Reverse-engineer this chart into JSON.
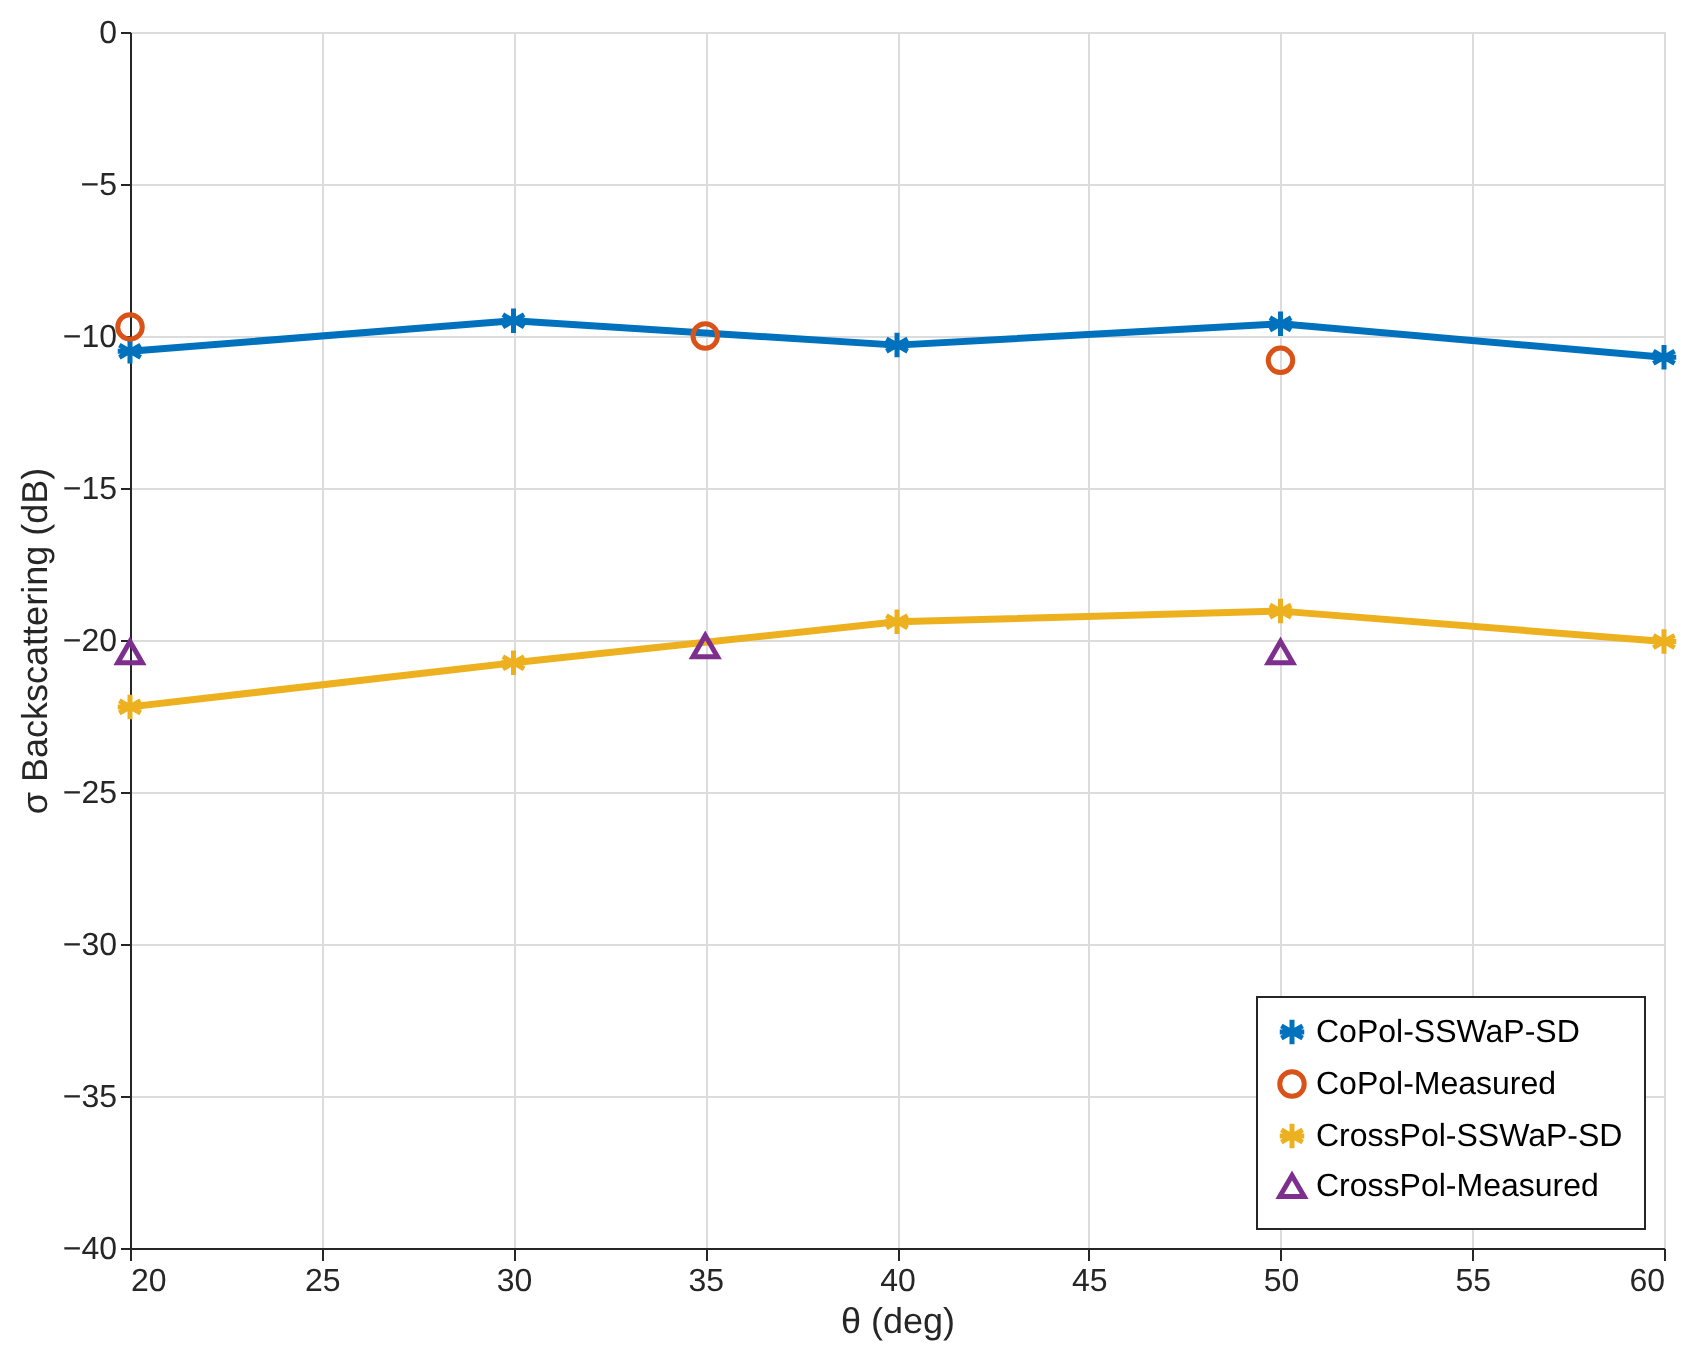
{
  "chart_data": {
    "type": "line",
    "xlabel": "θ (deg)",
    "ylabel": "σ Backscattering (dB)",
    "xlim": [
      20,
      60
    ],
    "xticks": [
      20,
      25,
      30,
      35,
      40,
      45,
      50,
      55,
      60
    ],
    "ylim": [
      -40,
      0
    ],
    "yticks": [
      -40,
      -35,
      -30,
      -25,
      -20,
      -15,
      -10,
      -5,
      0
    ],
    "grid": true,
    "legend": "bottom right",
    "series": [
      {
        "name": "CoPol-SSWaP-SD",
        "type": "line",
        "marker": "cross",
        "color": "#0072bd",
        "x": [
          20,
          30,
          40,
          50,
          60
        ],
        "values": [
          -10.5,
          -9.5,
          -10.3,
          -9.6,
          -10.7
        ]
      },
      {
        "name": "CoPol-Measured",
        "type": "scatter",
        "marker": "circle",
        "color": "#d95319",
        "x": [
          20,
          35,
          50
        ],
        "values": [
          -9.7,
          -10.0,
          -10.8
        ]
      },
      {
        "name": "CrossPol-SSWaP-SD",
        "type": "line",
        "marker": "cross",
        "color": "#edb120",
        "x": [
          20,
          30,
          40,
          50,
          60
        ],
        "values": [
          -22.2,
          -20.75,
          -19.4,
          -19.05,
          -20.05
        ]
      },
      {
        "name": "CrossPol-Measured",
        "type": "scatter",
        "marker": "triangle",
        "color": "#7e2f8e",
        "x": [
          20,
          35,
          50
        ],
        "values": [
          -20.4,
          -20.2,
          -20.4
        ]
      }
    ]
  }
}
